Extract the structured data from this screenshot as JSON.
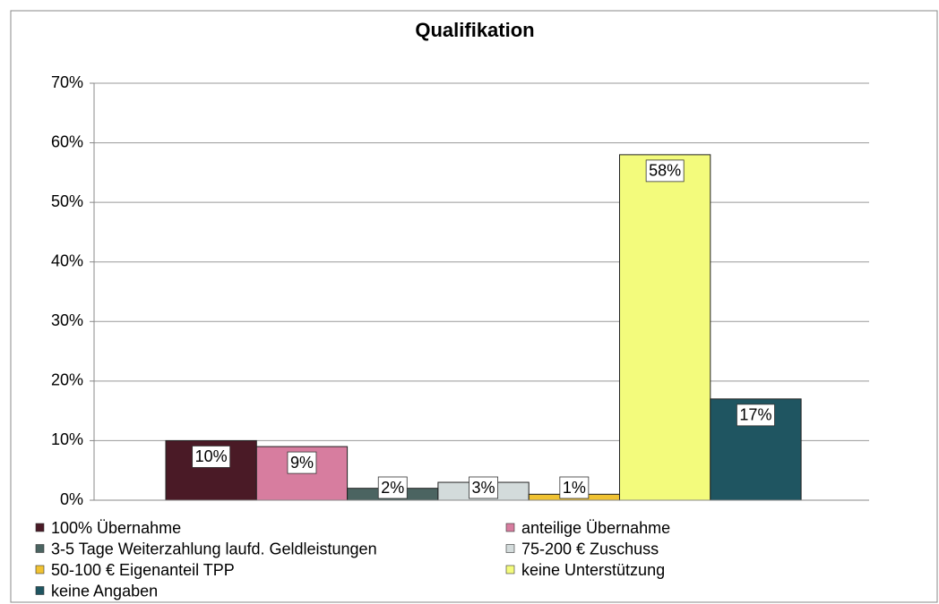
{
  "chart_data": {
    "type": "bar",
    "title": "Qualifikation",
    "series": [
      {
        "name": "100% Übernahme",
        "color": "#4a1a26",
        "values": [
          10
        ],
        "value_labels": [
          "10%"
        ]
      },
      {
        "name": "anteilige Übernahme",
        "color": "#d77d9f",
        "values": [
          9
        ],
        "value_labels": [
          "9%"
        ]
      },
      {
        "name": "3-5 Tage Weiterzahlung laufd. Geldleistungen",
        "color": "#4b6461",
        "values": [
          2
        ],
        "value_labels": [
          "2%"
        ]
      },
      {
        "name": "75-200 € Zuschuss",
        "color": "#d3dbdb",
        "values": [
          3
        ],
        "value_labels": [
          "3%"
        ]
      },
      {
        "name": "50-100 € Eigenanteil TPP",
        "color": "#f0c232",
        "values": [
          1
        ],
        "value_labels": [
          "1%"
        ]
      },
      {
        "name": "keine Unterstützung",
        "color": "#f3fb7c",
        "values": [
          58
        ],
        "value_labels": [
          "58%"
        ]
      },
      {
        "name": "keine Angaben",
        "color": "#1f5561",
        "values": [
          17
        ],
        "value_labels": [
          "17%"
        ]
      }
    ],
    "ylim": [
      0,
      70
    ],
    "yticks": [
      {
        "value": 0,
        "label": "0%"
      },
      {
        "value": 10,
        "label": "10%"
      },
      {
        "value": 20,
        "label": "20%"
      },
      {
        "value": 30,
        "label": "30%"
      },
      {
        "value": 40,
        "label": "40%"
      },
      {
        "value": 50,
        "label": "50%"
      },
      {
        "value": 60,
        "label": "60%"
      },
      {
        "value": 70,
        "label": "70%"
      }
    ],
    "grid": true,
    "legend": "bottom"
  }
}
